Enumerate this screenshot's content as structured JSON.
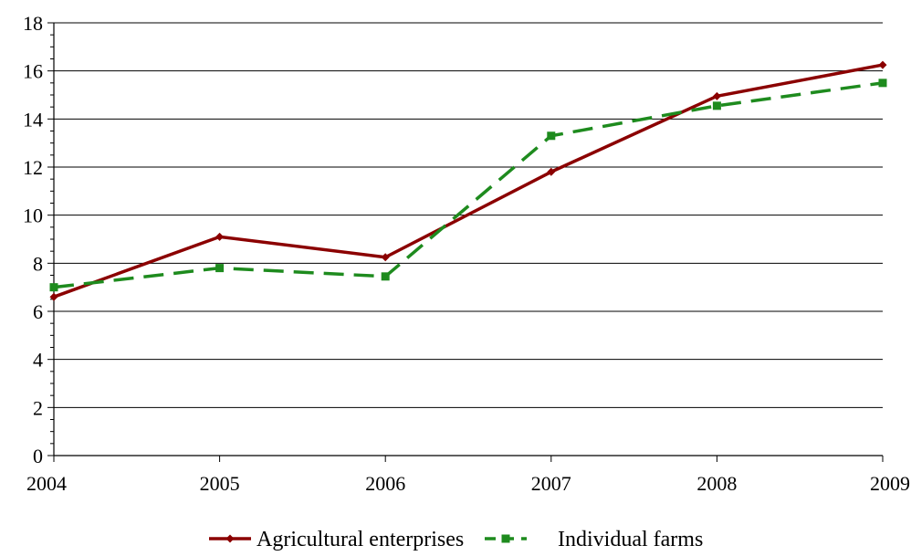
{
  "chart_data": {
    "type": "line",
    "title": "",
    "xlabel": "",
    "ylabel": "",
    "x": [
      2004,
      2005,
      2006,
      2007,
      2008,
      2009
    ],
    "ylim": [
      0,
      18
    ],
    "y_ticks": [
      0,
      2,
      4,
      6,
      8,
      10,
      12,
      14,
      16,
      18
    ],
    "grid": "horizontal",
    "legend_position": "bottom",
    "series": [
      {
        "name": "Agricultural enterprises",
        "color": "#8B0000",
        "line_style": "solid",
        "marker": "diamond",
        "values": [
          6.6,
          9.1,
          8.25,
          11.8,
          14.95,
          16.25
        ]
      },
      {
        "name": "Individual farms",
        "color": "#1E8B1E",
        "line_style": "dashed",
        "marker": "square",
        "values": [
          7.0,
          7.8,
          7.45,
          13.3,
          14.55,
          15.5
        ]
      }
    ]
  }
}
